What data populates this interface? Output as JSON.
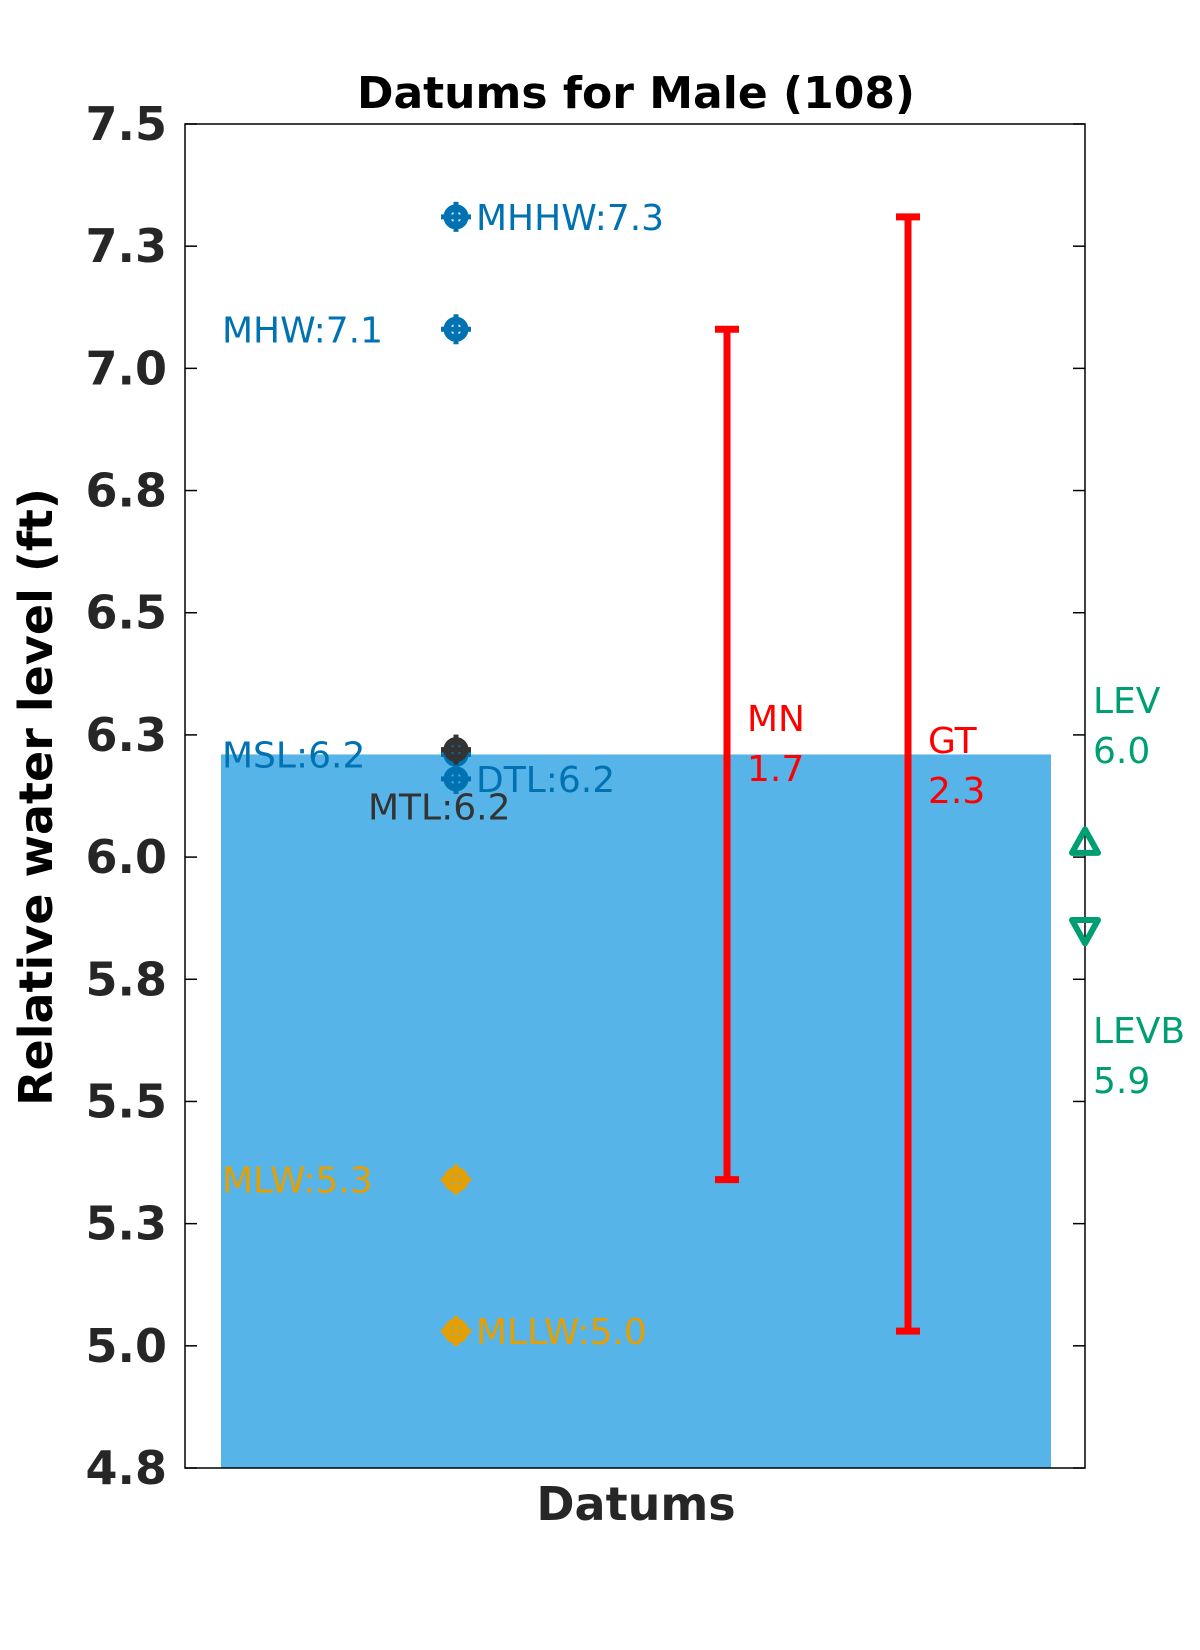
{
  "chart_data": {
    "type": "scatter",
    "title": "Datums for Male (108)",
    "xlabel": "Datums",
    "ylabel": "Relative water level (ft)",
    "ylim": [
      4.75,
      7.5
    ],
    "y_ticks": [
      {
        "value": 4.75,
        "label": "4.8"
      },
      {
        "value": 5.0,
        "label": "5.0"
      },
      {
        "value": 5.25,
        "label": "5.3"
      },
      {
        "value": 5.5,
        "label": "5.5"
      },
      {
        "value": 5.75,
        "label": "5.8"
      },
      {
        "value": 6.0,
        "label": "6.0"
      },
      {
        "value": 6.25,
        "label": "6.3"
      },
      {
        "value": 6.5,
        "label": "6.5"
      },
      {
        "value": 6.75,
        "label": "6.8"
      },
      {
        "value": 7.0,
        "label": "7.0"
      },
      {
        "value": 7.25,
        "label": "7.3"
      },
      {
        "value": 7.5,
        "label": "7.5"
      }
    ],
    "grid": false,
    "background_bar": {
      "top": 6.21,
      "color": "#56b4e9"
    },
    "datums": [
      {
        "name": "MHHW",
        "value": 7.31,
        "label": "MHHW:7.3",
        "color": "#0072b2",
        "label_side": "right"
      },
      {
        "name": "MHW",
        "value": 7.08,
        "label": "MHW:7.1",
        "color": "#0072b2",
        "label_side": "left"
      },
      {
        "name": "MSL",
        "value": 6.21,
        "label": "MSL:6.2",
        "color": "#0072b2",
        "label_side": "left"
      },
      {
        "name": "DTL",
        "value": 6.16,
        "label": "DTL:6.2",
        "color": "#0072b2",
        "label_side": "right"
      },
      {
        "name": "MTL",
        "value": 6.22,
        "label": "MTL:6.2",
        "color": "#333333",
        "label_side": "below"
      },
      {
        "name": "MLW",
        "value": 5.34,
        "label": "MLW:5.3",
        "color": "#e69f00",
        "label_side": "left"
      },
      {
        "name": "MLLW",
        "value": 5.03,
        "label": "MLLW:5.0",
        "color": "#e69f00",
        "label_side": "right"
      }
    ],
    "ranges": [
      {
        "name": "MN",
        "label": "MN",
        "value_label": "1.7",
        "low": 5.34,
        "high": 7.08,
        "color": "#ff0000"
      },
      {
        "name": "GT",
        "label": "GT",
        "value_label": "2.3",
        "low": 5.03,
        "high": 7.31,
        "color": "#ff0000"
      }
    ],
    "levels": [
      {
        "name": "LEV",
        "label": "LEV",
        "value_label": "6.0",
        "value": 6.03,
        "marker": "triangle-up",
        "color": "#009e73"
      },
      {
        "name": "LEVB",
        "label": "LEVB",
        "value_label": "5.9",
        "value": 5.85,
        "marker": "triangle-down",
        "color": "#009e73"
      }
    ]
  }
}
